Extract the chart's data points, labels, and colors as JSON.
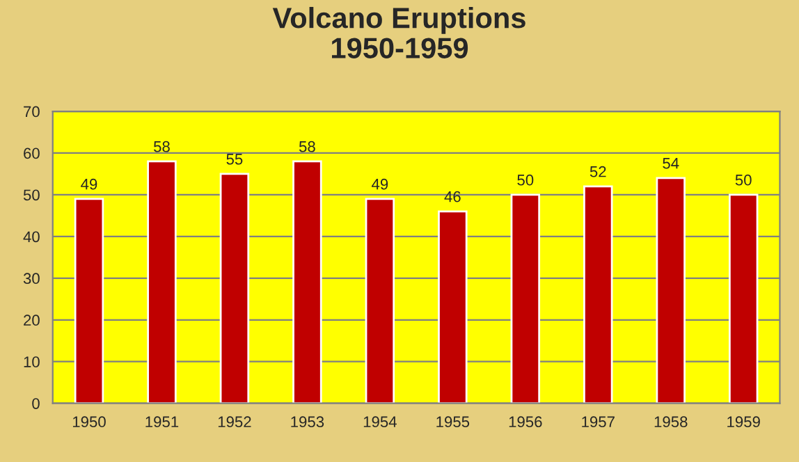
{
  "chart_data": {
    "type": "bar",
    "title": "Volcano Eruptions\n1950-1959",
    "categories": [
      "1950",
      "1951",
      "1952",
      "1953",
      "1954",
      "1955",
      "1956",
      "1957",
      "1958",
      "1959"
    ],
    "values": [
      49,
      58,
      55,
      58,
      49,
      46,
      50,
      52,
      54,
      50
    ],
    "color": "#c00000",
    "ylim": [
      0,
      70
    ],
    "yticks": [
      0,
      10,
      20,
      30,
      40,
      50,
      60,
      70
    ],
    "grid": "y",
    "data_labels": true
  }
}
